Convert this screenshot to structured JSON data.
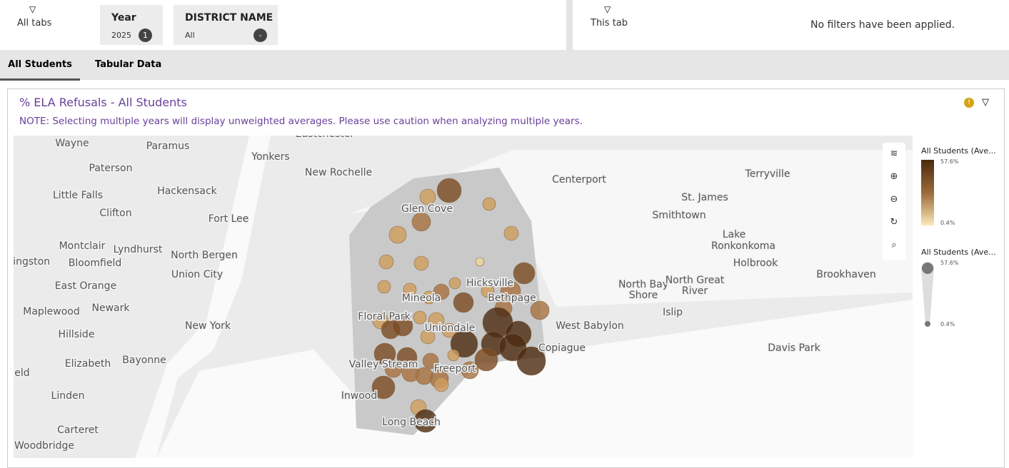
{
  "filters": {
    "all_tabs": "All tabs",
    "year": {
      "title": "Year",
      "value": "2025",
      "count": "1"
    },
    "district": {
      "title": "DISTRICT NAME",
      "value": "All",
      "count": "-"
    },
    "this_tab": "This tab",
    "status": "No filters have been applied."
  },
  "tabs": [
    "All Students",
    "Tabular Data"
  ],
  "widget": {
    "title": "% ELA Refusals - All Students",
    "note": "NOTE: Selecting multiple years will display unweighted averages.  Please use caution when analyzing multiple years.",
    "legend_color": {
      "title": "All Students (Ave...",
      "max": "57.6%",
      "min": "0.4%"
    },
    "legend_size": {
      "title": "All Students (Ave...",
      "max": "57.6%",
      "min": "0.4%"
    }
  },
  "map_labels": [
    "Eastchester",
    "Wayne",
    "Paramus",
    "Yonkers",
    "New Rochelle",
    "Paterson",
    "Hackensack",
    "Little Falls",
    "Clifton",
    "Fort Lee",
    "Glen Cove",
    "Centerport",
    "Terryville",
    "St. James",
    "Smithtown",
    "Lake",
    "Ronkonkoma",
    "Montclair",
    "Lyndhurst",
    "North Bergen",
    "vingston",
    "Bloomfield",
    "Union City",
    "Hicksville",
    "Mineola",
    "Bethpage",
    "North Bay",
    "Shore",
    "North Great",
    "River",
    "Holbrook",
    "Brookhaven",
    "East Orange",
    "Newark",
    "Maplewood",
    "New York",
    "Floral Park",
    "Islip",
    "Uniondale",
    "West Babylon",
    "Hillside",
    "Copiague",
    "Davis Park",
    "Elizabeth",
    "Bayonne",
    "Valley Stream",
    "Freeport",
    "ield",
    "Linden",
    "Inwood",
    "Long Beach",
    "Carteret",
    "Woodbridge"
  ]
}
